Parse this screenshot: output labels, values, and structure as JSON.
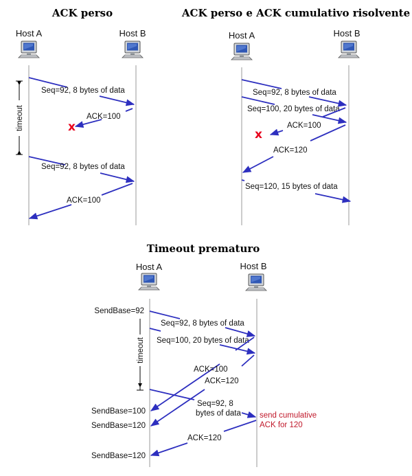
{
  "panels": {
    "lost_ack": {
      "title": "ACK perso",
      "host_a": "Host A",
      "host_b": "Host B",
      "timeout_label": "timeout",
      "msg1": "Seq=92, 8 bytes of data",
      "ack1": "ACK=100",
      "msg2": "Seq=92, 8 bytes of data",
      "ack2": "ACK=100"
    },
    "cumulative": {
      "title": "ACK perso e ACK cumulativo risolvente",
      "host_a": "Host A",
      "host_b": "Host B",
      "msg1": "Seq=92, 8 bytes of data",
      "msg2": "Seq=100, 20 bytes of data",
      "ack1": "ACK=100",
      "ack2": "ACK=120",
      "msg3": "Seq=120,  15 bytes of data"
    },
    "premature": {
      "title": "Timeout prematuro",
      "host_a": "Host A",
      "host_b": "Host B",
      "timeout_label": "timeout",
      "sendbase_1": "SendBase=92",
      "sendbase_2": "SendBase=100",
      "sendbase_3": "SendBase=120",
      "sendbase_4": "SendBase=120",
      "msg1": "Seq=92, 8 bytes of data",
      "msg2": "Seq=100, 20 bytes of data",
      "ack1": "ACK=100",
      "ack2": "ACK=120",
      "retx_line1": "Seq=92,  8",
      "retx_line2": "bytes of data",
      "note_line1": "send cumulative",
      "note_line2": "ACK for 120",
      "ack3": "ACK=120"
    }
  },
  "colors": {
    "message_arrow": "#2d2fbf",
    "loss_mark": "#e8001c",
    "note_text": "#c0182a",
    "timeline": "#9a9a9a"
  },
  "icons": {
    "host": "desktop-computer-icon",
    "loss": "red-x-loss-icon"
  }
}
